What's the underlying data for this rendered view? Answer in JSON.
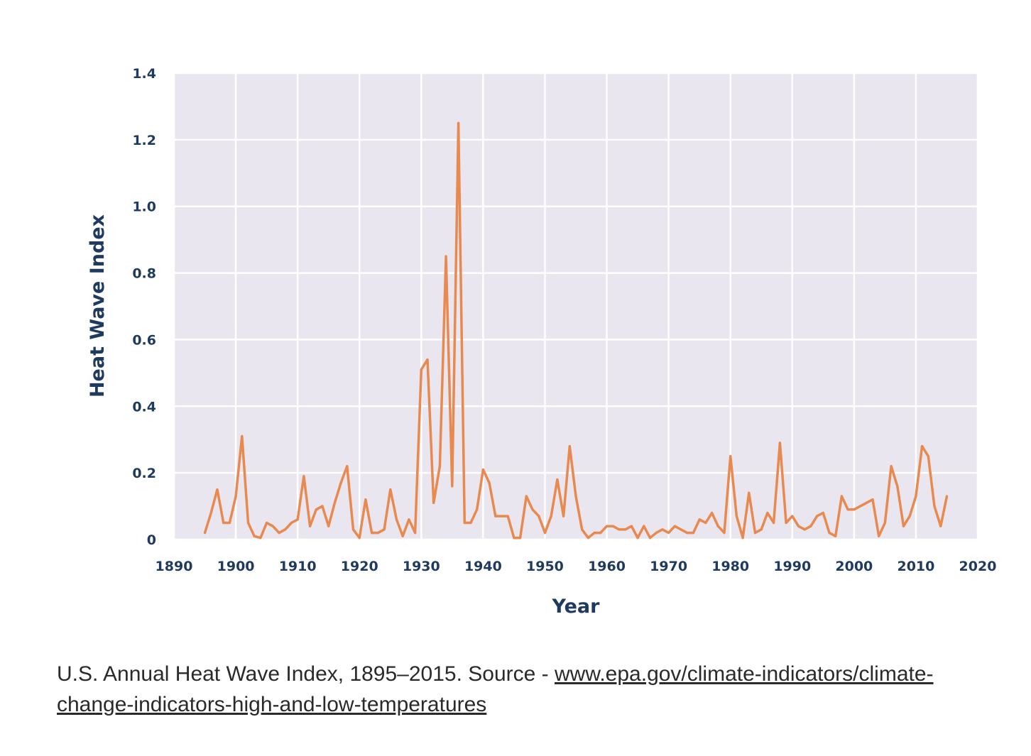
{
  "chart_data": {
    "type": "line",
    "title": "",
    "xlabel": "Year",
    "ylabel": "Heat Wave Index",
    "xlim": [
      1890,
      2020
    ],
    "ylim": [
      0,
      1.4
    ],
    "x_ticks": [
      1890,
      1900,
      1910,
      1920,
      1930,
      1940,
      1950,
      1960,
      1970,
      1980,
      1990,
      2000,
      2010,
      2020
    ],
    "x_tick_labels": [
      "1890",
      "1900",
      "1910",
      "1920",
      "1930",
      "1940",
      "1950",
      "1960",
      "1970",
      "1980",
      "1990",
      "2000",
      "2010",
      "2020"
    ],
    "y_ticks": [
      0,
      0.2,
      0.4,
      0.6,
      0.8,
      1.0,
      1.2,
      1.4
    ],
    "y_tick_labels": [
      "0",
      "0.2",
      "0.4",
      "0.6",
      "0.8",
      "1.0",
      "1.2",
      "1.4"
    ],
    "grid": true,
    "colors": {
      "line": "#e8894f",
      "plot_background": "#e9e6f0",
      "grid": "#ffffff",
      "text": "#1f3a5f"
    },
    "series": [
      {
        "x": [
          1895,
          1896,
          1897,
          1898,
          1899,
          1900,
          1901,
          1902,
          1903,
          1904,
          1905,
          1906,
          1907,
          1908,
          1909,
          1910,
          1911,
          1912,
          1913,
          1914,
          1915,
          1916,
          1917,
          1918,
          1919,
          1920,
          1921,
          1922,
          1923,
          1924,
          1925,
          1926,
          1927,
          1928,
          1929,
          1930,
          1931,
          1932,
          1933,
          1934,
          1935,
          1936,
          1937,
          1938,
          1939,
          1940,
          1941,
          1942,
          1943,
          1944,
          1945,
          1946,
          1947,
          1948,
          1949,
          1950,
          1951,
          1952,
          1953,
          1954,
          1955,
          1956,
          1957,
          1958,
          1959,
          1960,
          1961,
          1962,
          1963,
          1964,
          1965,
          1966,
          1967,
          1968,
          1969,
          1970,
          1971,
          1972,
          1973,
          1974,
          1975,
          1976,
          1977,
          1978,
          1979,
          1980,
          1981,
          1982,
          1983,
          1984,
          1985,
          1986,
          1987,
          1988,
          1989,
          1990,
          1991,
          1992,
          1993,
          1994,
          1995,
          1996,
          1997,
          1998,
          1999,
          2000,
          2001,
          2002,
          2003,
          2004,
          2005,
          2006,
          2007,
          2008,
          2009,
          2010,
          2011,
          2012,
          2013,
          2014,
          2015
        ],
        "y": [
          0.02,
          0.08,
          0.15,
          0.05,
          0.05,
          0.13,
          0.31,
          0.05,
          0.01,
          0.005,
          0.05,
          0.04,
          0.02,
          0.03,
          0.05,
          0.06,
          0.19,
          0.04,
          0.09,
          0.1,
          0.04,
          0.11,
          0.17,
          0.22,
          0.03,
          0.005,
          0.12,
          0.02,
          0.02,
          0.03,
          0.15,
          0.06,
          0.01,
          0.06,
          0.02,
          0.51,
          0.54,
          0.11,
          0.22,
          0.85,
          0.16,
          1.25,
          0.05,
          0.05,
          0.09,
          0.21,
          0.17,
          0.07,
          0.07,
          0.07,
          0.005,
          0.005,
          0.13,
          0.09,
          0.07,
          0.02,
          0.07,
          0.18,
          0.07,
          0.28,
          0.13,
          0.03,
          0.005,
          0.02,
          0.02,
          0.04,
          0.04,
          0.03,
          0.03,
          0.04,
          0.005,
          0.04,
          0.005,
          0.02,
          0.03,
          0.02,
          0.04,
          0.03,
          0.02,
          0.02,
          0.06,
          0.05,
          0.08,
          0.04,
          0.02,
          0.25,
          0.07,
          0.005,
          0.14,
          0.02,
          0.03,
          0.08,
          0.05,
          0.29,
          0.05,
          0.07,
          0.04,
          0.03,
          0.04,
          0.07,
          0.08,
          0.02,
          0.01,
          0.13,
          0.09,
          0.09,
          0.1,
          0.11,
          0.12,
          0.01,
          0.05,
          0.22,
          0.16,
          0.04,
          0.07,
          0.13,
          0.28,
          0.25,
          0.1,
          0.04,
          0.13
        ]
      }
    ]
  },
  "caption": {
    "text": "U.S. Annual Heat Wave Index, 1895–2015. Source - ",
    "link": "www.epa.gov/climate-indicators/climate-change-indicators-high-and-low-temperatures"
  }
}
